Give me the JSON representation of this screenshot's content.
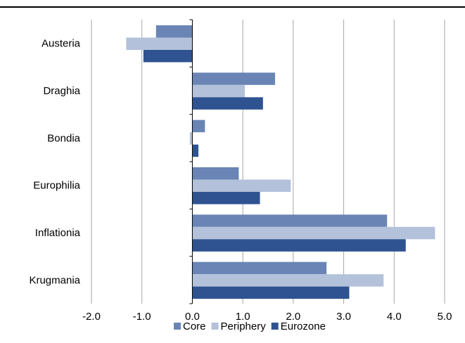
{
  "chart_data": {
    "type": "bar",
    "orientation": "horizontal",
    "title": "",
    "xlabel": "",
    "ylabel": "",
    "categories": [
      "Austeria",
      "Draghia",
      "Bondia",
      "Europhilia",
      "Inflationia",
      "Krugmania"
    ],
    "series": [
      {
        "name": "Core",
        "color": "#6A85B5",
        "values": [
          -0.72,
          1.64,
          0.25,
          0.92,
          3.86,
          2.66
        ]
      },
      {
        "name": "Periphery",
        "color": "#B3C1DA",
        "values": [
          -1.31,
          1.04,
          -0.05,
          1.95,
          4.81,
          3.79
        ]
      },
      {
        "name": "Eurozone",
        "color": "#2F5391",
        "values": [
          -0.97,
          1.4,
          0.12,
          1.34,
          4.23,
          3.11
        ]
      }
    ],
    "xlim": [
      -2.0,
      5.0
    ],
    "xticks": [
      "-2.0",
      "-1.0",
      "0.0",
      "1.0",
      "2.0",
      "3.0",
      "4.0",
      "5.0"
    ],
    "grid": "vertical",
    "legend": "bottom"
  }
}
